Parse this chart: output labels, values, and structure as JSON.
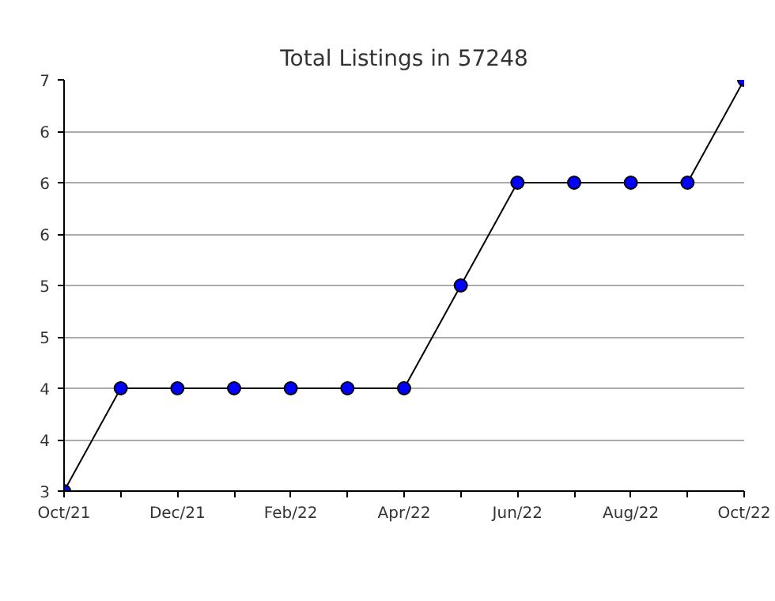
{
  "chart_data": {
    "type": "line",
    "title": "Total Listings in 57248",
    "categories": [
      "Oct/21",
      null,
      "Dec/21",
      null,
      "Feb/22",
      null,
      "Apr/22",
      null,
      "Jun/22",
      null,
      "Aug/22",
      null,
      "Oct/22"
    ],
    "series": [
      {
        "color": "#0000ff",
        "values": [
          3,
          4,
          4,
          4,
          4,
          4,
          4,
          5,
          6,
          6,
          6,
          6,
          7
        ]
      }
    ],
    "ylim": [
      3,
      7
    ],
    "yticks": [
      3,
      {
        "value": 3.5,
        "label": "4"
      },
      4,
      {
        "value": 4.5,
        "label": "5"
      },
      5,
      {
        "value": 5.5,
        "label": "6"
      },
      6,
      {
        "value": 6.5,
        "label": "6"
      },
      7
    ],
    "grid": "y",
    "marker": "circle",
    "line_style": "solid"
  }
}
